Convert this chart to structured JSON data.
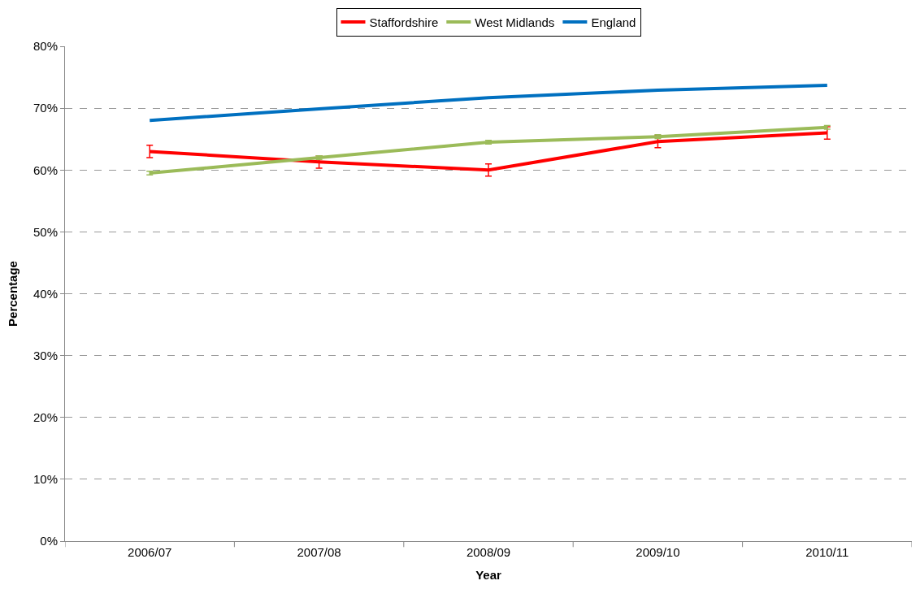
{
  "chart_data": {
    "type": "line",
    "xlabel": "Year",
    "ylabel": "Percentage",
    "categories": [
      "2006/07",
      "2007/08",
      "2008/09",
      "2009/10",
      "2010/11"
    ],
    "series": [
      {
        "name": "Staffordshire",
        "color": "#ff0000",
        "values": [
          63.0,
          61.3,
          60.0,
          64.6,
          66.0
        ],
        "errors": [
          1.0,
          1.0,
          1.0,
          1.0,
          1.0
        ]
      },
      {
        "name": "West Midlands",
        "color": "#9bbb59",
        "values": [
          59.5,
          62.0,
          64.5,
          65.4,
          66.9
        ],
        "errors": [
          0.3,
          0.3,
          0.3,
          0.3,
          0.3
        ]
      },
      {
        "name": "England",
        "color": "#0070c0",
        "values": [
          68.0,
          69.9,
          71.7,
          72.9,
          73.7
        ]
      }
    ],
    "ylim": [
      0,
      80
    ],
    "yticks": [
      {
        "value": 0,
        "label": "0%"
      },
      {
        "value": 10,
        "label": "10%"
      },
      {
        "value": 20,
        "label": "20%"
      },
      {
        "value": 30,
        "label": "30%"
      },
      {
        "value": 40,
        "label": "40%"
      },
      {
        "value": 50,
        "label": "50%"
      },
      {
        "value": 60,
        "label": "60%"
      },
      {
        "value": 70,
        "label": "70%"
      },
      {
        "value": 80,
        "label": "80%"
      }
    ],
    "grid": "y",
    "legend": "top",
    "marker": "none",
    "line_style": "solid"
  }
}
